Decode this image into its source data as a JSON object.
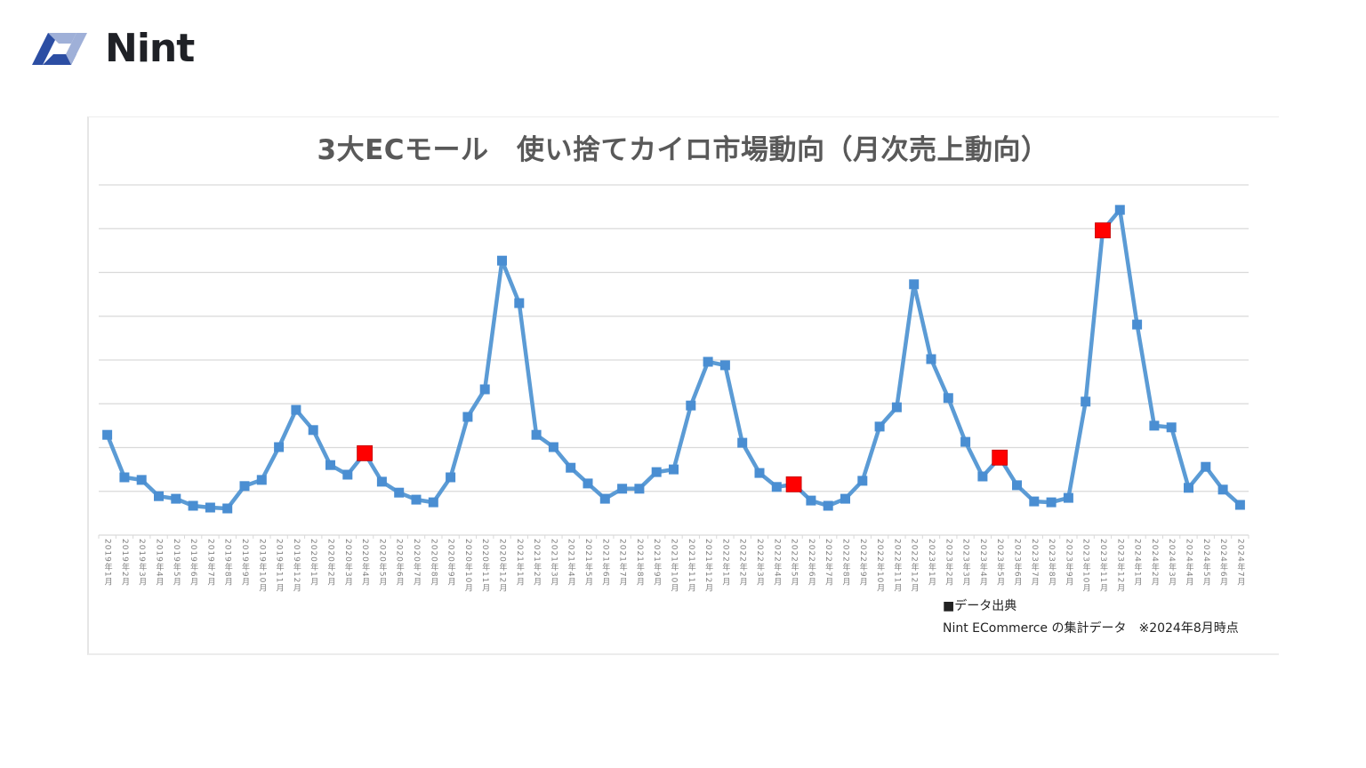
{
  "brand": {
    "logo_text": "Nint",
    "logo_colors": {
      "dark_blue": "#2c4ea3",
      "light_blue": "#9fb0d8",
      "text": "#1f2126"
    }
  },
  "chart": {
    "title": "3大ECモール　使い捨てカイロ市場動向（月次売上動向）",
    "source_heading": "■データ出典",
    "source_text": "Nint ECommerce の集計データ　※2024年8月時点"
  },
  "colors": {
    "line": "#5b9bd5",
    "marker": "#4a8ed2",
    "highlight_marker": "#ff0000",
    "gridline": "#d9d9d9",
    "title": "#595959",
    "tick_label": "#7f7f7f"
  },
  "chart_data": {
    "type": "line",
    "title": "3大ECモール　使い捨てカイロ市場動向（月次売上動向）",
    "xlabel": "",
    "ylabel": "",
    "y_unit_note": "No y-axis tick labels shown; values are relative, expressed in gridline units (axis = 0, top gridline = 8).",
    "ylim": [
      0,
      8
    ],
    "grid": true,
    "gridlines_y": [
      1,
      2,
      3,
      4,
      5,
      6,
      7,
      8
    ],
    "legend": null,
    "categories": [
      "2019年1月",
      "2019年2月",
      "2019年3月",
      "2019年4月",
      "2019年5月",
      "2019年6月",
      "2019年7月",
      "2019年8月",
      "2019年9月",
      "2019年10月",
      "2019年11月",
      "2019年12月",
      "2020年1月",
      "2020年2月",
      "2020年3月",
      "2020年4月",
      "2020年5月",
      "2020年6月",
      "2020年7月",
      "2020年8月",
      "2020年9月",
      "2020年10月",
      "2020年11月",
      "2020年12月",
      "2021年1月",
      "2021年2月",
      "2021年3月",
      "2021年4月",
      "2021年5月",
      "2021年6月",
      "2021年7月",
      "2021年8月",
      "2021年9月",
      "2021年10月",
      "2021年11月",
      "2021年12月",
      "2022年1月",
      "2022年2月",
      "2022年3月",
      "2022年4月",
      "2022年5月",
      "2022年6月",
      "2022年7月",
      "2022年8月",
      "2022年9月",
      "2022年10月",
      "2022年11月",
      "2022年12月",
      "2023年1月",
      "2023年2月",
      "2023年3月",
      "2023年4月",
      "2023年5月",
      "2023年6月",
      "2023年7月",
      "2023年8月",
      "2023年9月",
      "2023年10月",
      "2023年11月",
      "2023年12月",
      "2024年1月",
      "2024年2月",
      "2024年3月",
      "2024年4月",
      "2024年5月",
      "2024年6月",
      "2024年7月"
    ],
    "series": [
      {
        "name": "月次売上",
        "values": [
          2.29,
          1.32,
          1.26,
          0.89,
          0.83,
          0.67,
          0.63,
          0.61,
          1.12,
          1.26,
          2.01,
          2.86,
          2.4,
          1.6,
          1.38,
          1.87,
          1.22,
          0.97,
          0.81,
          0.75,
          1.32,
          2.7,
          3.33,
          6.27,
          5.3,
          2.29,
          2.01,
          1.54,
          1.18,
          0.83,
          1.06,
          1.06,
          1.44,
          1.5,
          2.96,
          3.96,
          3.88,
          2.11,
          1.42,
          1.1,
          1.16,
          0.79,
          0.67,
          0.83,
          1.24,
          2.48,
          2.92,
          5.73,
          4.02,
          3.13,
          2.13,
          1.34,
          1.77,
          1.14,
          0.77,
          0.75,
          0.85,
          3.05,
          6.96,
          7.43,
          4.81,
          2.5,
          2.46,
          1.08,
          1.56,
          1.04,
          0.69
        ]
      }
    ],
    "highlighted_points": [
      "2020年4月",
      "2022年5月",
      "2023年5月",
      "2023年11月"
    ],
    "annotations": [
      "■データ出典",
      "Nint ECommerce の集計データ　※2024年8月時点"
    ]
  }
}
